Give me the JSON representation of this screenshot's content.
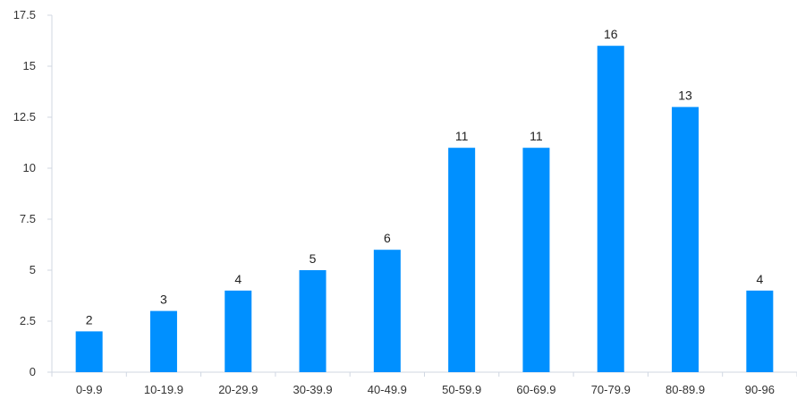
{
  "chart_data": {
    "type": "bar",
    "title": "",
    "xlabel": "",
    "ylabel": "",
    "categories": [
      "0-9.9",
      "10-19.9",
      "20-29.9",
      "30-39.9",
      "40-49.9",
      "50-59.9",
      "60-69.9",
      "70-79.9",
      "80-89.9",
      "90-96"
    ],
    "values": [
      2,
      3,
      4,
      5,
      6,
      11,
      11,
      16,
      13,
      4
    ],
    "data_labels": [
      "2",
      "3",
      "4",
      "5",
      "6",
      "11",
      "11",
      "16",
      "13",
      "4"
    ],
    "ylim": [
      0,
      17.5
    ],
    "y_ticks": [
      0,
      2.5,
      5,
      7.5,
      10,
      12.5,
      15,
      17.5
    ],
    "y_tick_labels": [
      "0",
      "2.5",
      "5",
      "7.5",
      "10",
      "12.5",
      "15",
      "17.5"
    ],
    "grid": false,
    "legend": "none",
    "bar_color": "#0090ff",
    "axis_color": "#d0d7e2"
  }
}
